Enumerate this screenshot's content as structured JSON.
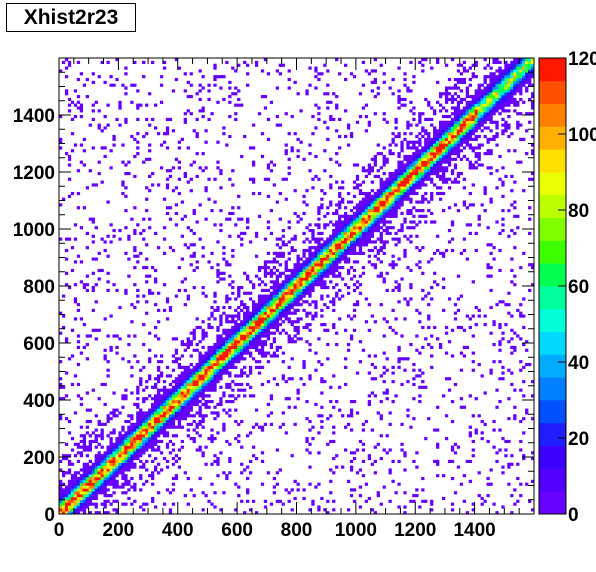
{
  "title": "Xhist2r23",
  "chart_data": {
    "type": "heatmap",
    "title": "Xhist2r23",
    "xlim": [
      0,
      1600
    ],
    "ylim": [
      0,
      1600
    ],
    "x_ticks": [
      0,
      200,
      400,
      600,
      800,
      1000,
      1200,
      1400
    ],
    "y_ticks": [
      0,
      200,
      400,
      600,
      800,
      1000,
      1200,
      1400
    ],
    "bins": 160,
    "z_range": [
      0,
      120
    ],
    "z_ticks": [
      0,
      20,
      40,
      60,
      80,
      100,
      120
    ],
    "colorbar_labels": [
      "0",
      "20",
      "40",
      "60",
      "80",
      "100",
      "120"
    ],
    "palette": [
      "#6600ff",
      "#5400ff",
      "#3c00ff",
      "#1e1eff",
      "#0050ff",
      "#0080ff",
      "#00aaff",
      "#00d8ff",
      "#00ffd8",
      "#00ff9a",
      "#00ff50",
      "#3cff00",
      "#80ff00",
      "#bbff00",
      "#eaff00",
      "#ffe000",
      "#ffb000",
      "#ff8000",
      "#ff5000",
      "#ff1800"
    ],
    "diagonal_peak": 120,
    "diagonal_width": 10,
    "background_occupancy": 0.09,
    "description": "Strong positive correlation: counts concentrated along the x=y diagonal with sparse uniform background"
  }
}
